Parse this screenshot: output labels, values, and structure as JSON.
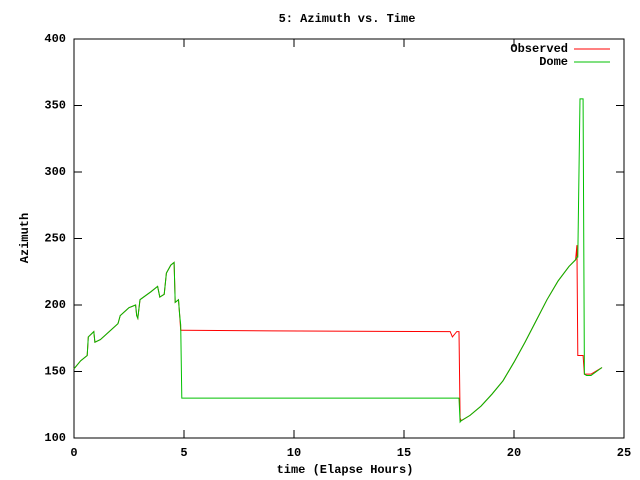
{
  "chart_data": {
    "type": "line",
    "title": "5: Azimuth vs. Time",
    "x_label": "time (Elapse Hours)",
    "y_label": "Azimuth",
    "x": [
      0,
      0.3,
      0.6,
      0.65,
      0.9,
      0.95,
      1.2,
      1.6,
      2.0,
      2.1,
      2.5,
      2.8,
      2.85,
      2.9,
      3.0,
      3.5,
      3.8,
      3.9,
      4.1,
      4.2,
      4.4,
      4.55,
      4.6,
      4.75,
      4.8,
      4.85,
      4.9,
      9,
      17.1,
      17.2,
      17.4,
      17.5,
      17.55,
      17.6,
      18,
      18.5,
      19,
      19.5,
      20,
      20.5,
      21,
      21.5,
      22,
      22.5,
      22.8,
      22.86,
      22.9,
      23.0,
      23.05,
      23.14,
      23.2,
      23.3,
      23.5,
      24
    ],
    "series": [
      {
        "name": "Observed",
        "color": "#ff0000",
        "values": [
          152,
          158,
          162,
          176,
          180,
          172,
          174,
          180,
          186,
          192,
          198,
          200,
          192,
          190,
          204,
          210,
          214,
          206,
          208,
          224,
          230,
          232,
          202,
          204,
          193,
          181,
          181,
          180.5,
          180,
          176,
          180,
          180,
          115,
          113,
          117,
          124,
          133,
          143,
          157,
          172,
          188,
          204,
          218,
          229,
          234,
          245,
          162,
          162,
          162,
          162,
          148,
          148,
          148,
          153
        ]
      },
      {
        "name": "Dome",
        "color": "#00c000",
        "values": [
          152,
          158,
          162,
          176,
          180,
          172,
          174,
          180,
          186,
          192,
          198,
          200,
          192,
          190,
          204,
          210,
          214,
          206,
          208,
          224,
          230,
          232,
          202,
          204,
          193,
          185,
          130,
          130,
          130,
          130,
          130,
          130,
          112,
          113,
          117,
          124,
          133,
          143,
          157,
          172,
          188,
          204,
          218,
          229,
          234,
          236,
          236,
          355,
          355,
          355,
          148,
          147,
          147,
          153
        ]
      }
    ],
    "xlim": [
      0,
      25
    ],
    "xticks": [
      0,
      5,
      10,
      15,
      20,
      25
    ],
    "ylim": [
      100,
      400
    ],
    "yticks": [
      100,
      150,
      200,
      250,
      300,
      350,
      400
    ],
    "legend": "top-right"
  }
}
